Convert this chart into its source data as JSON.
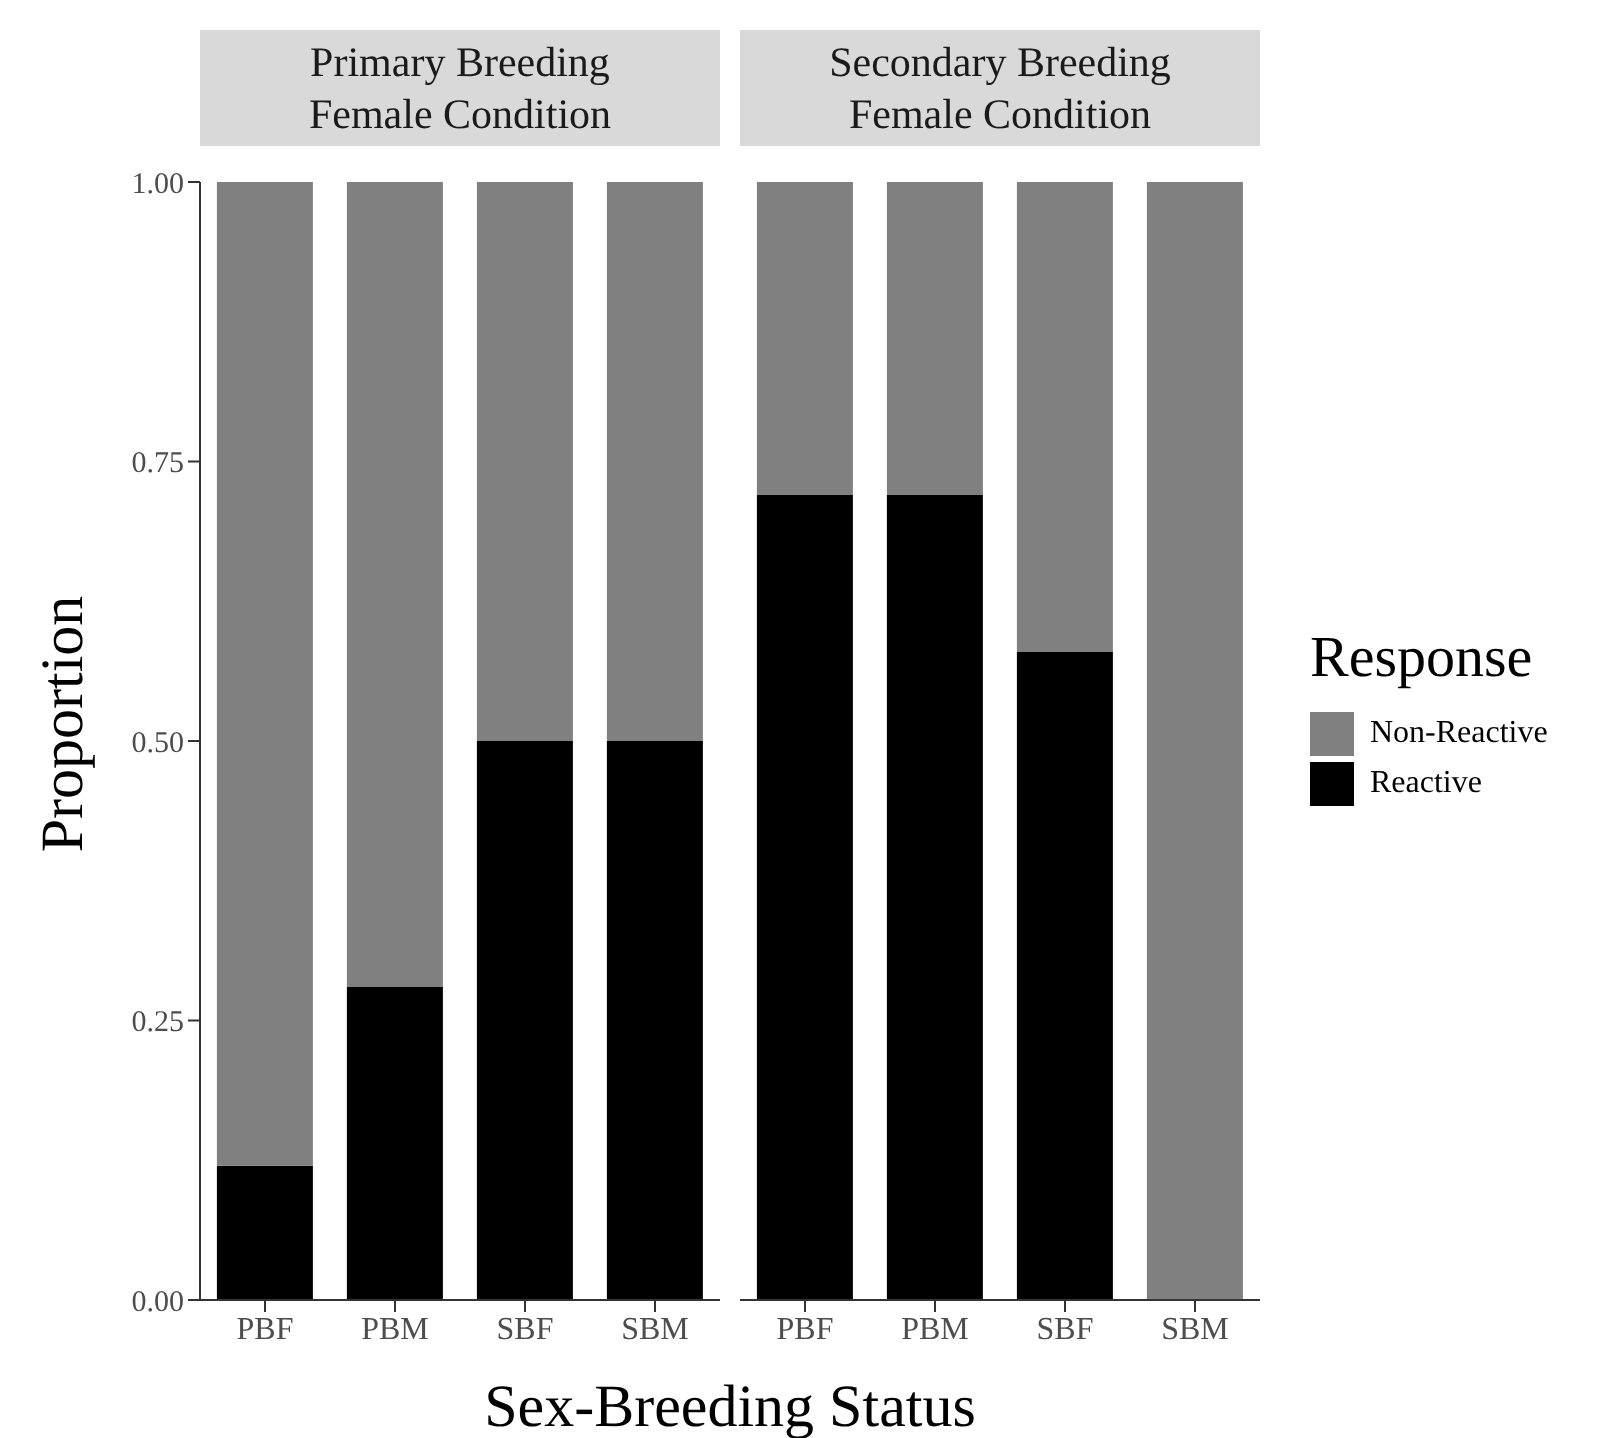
{
  "chart_data": [
    {
      "type": "bar",
      "title": "Primary Breeding\nFemale Condition",
      "xlabel": "Sex-Breeding Status",
      "ylabel": "Proportion",
      "categories": [
        "PBF",
        "PBM",
        "SBF",
        "SBM"
      ],
      "stacked": true,
      "ylim": [
        0,
        1
      ],
      "yticks": [
        {
          "value": 0,
          "label": "0.00"
        },
        {
          "value": 0.25,
          "label": "0.25"
        },
        {
          "value": 0.5,
          "label": "0.50"
        },
        {
          "value": 0.75,
          "label": "0.75"
        },
        {
          "value": 1,
          "label": "1.00"
        }
      ],
      "series": [
        {
          "color": "#000000",
          "values": [
            0.12,
            0.28,
            0.5,
            0.5
          ]
        },
        {
          "color": "#808080",
          "values": [
            0.88,
            0.72,
            0.5,
            0.5
          ]
        }
      ]
    },
    {
      "type": "bar",
      "title": "Secondary Breeding\nFemale Condition",
      "categories": [
        "PBF",
        "PBM",
        "SBF",
        "SBM"
      ],
      "stacked": true,
      "ylim": [
        0,
        1
      ],
      "tick_labels": "x",
      "legend": "right",
      "legend_title": "Response",
      "series": [
        {
          "name": "Reactive",
          "color": "#000000",
          "values": [
            0.72,
            0.72,
            0.58,
            0
          ]
        },
        {
          "name": "Non-Reactive",
          "color": "#808080",
          "values": [
            0.28,
            0.28,
            0.42,
            1
          ]
        }
      ]
    }
  ]
}
